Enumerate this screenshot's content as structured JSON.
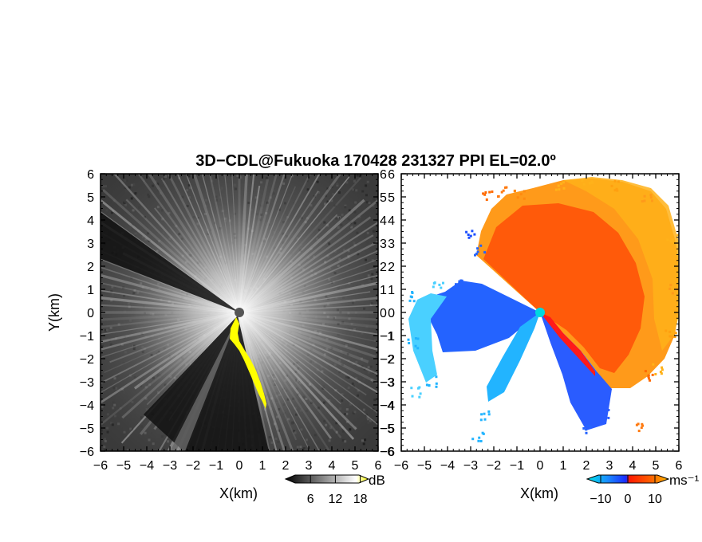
{
  "title": "3D−CDL@Fukuoka 170428 231327 PPI EL=02.0º",
  "chart_data": [
    {
      "type": "heatmap",
      "panel": "left",
      "quantity": "SNR",
      "xlabel": "X(km)",
      "ylabel": "Y(km)",
      "xlim": [
        -6,
        6
      ],
      "ylim": [
        -6,
        6
      ],
      "x_ticks": [
        "−6",
        "−5",
        "−4",
        "−3",
        "−2",
        "−1",
        "0",
        "1",
        "2",
        "3",
        "4",
        "5",
        "6"
      ],
      "y_ticks": [
        "6",
        "5",
        "4",
        "3",
        "2",
        "1",
        "0",
        "−1",
        "−2",
        "−3",
        "−4",
        "−5",
        "−6"
      ],
      "colorbar": {
        "unit": "dB",
        "ticks": [
          "6",
          "12",
          "18"
        ],
        "tick_values": [
          6,
          12,
          18
        ],
        "range": [
          0,
          20
        ],
        "colors": [
          "#000000",
          "#ffffff",
          "#ffff00"
        ]
      },
      "beam_blocked_sectors_deg": [
        [
          120,
          150
        ],
        [
          182,
          222
        ]
      ]
    },
    {
      "type": "heatmap",
      "panel": "right",
      "quantity": "Radial velocity",
      "xlabel": "X(km)",
      "xlim": [
        -6,
        6
      ],
      "ylim": [
        -6,
        6
      ],
      "x_ticks": [
        "−6",
        "−5",
        "−4",
        "−3",
        "−2",
        "−1",
        "0",
        "1",
        "2",
        "3",
        "4",
        "5",
        "6"
      ],
      "y_ticks": [
        "6",
        "5",
        "4",
        "3",
        "2",
        "1",
        "0",
        "−1",
        "−2",
        "−3",
        "−4",
        "−5",
        "−6"
      ],
      "colorbar": {
        "unit": "ms⁻¹",
        "ticks": [
          "−10",
          "0",
          "10"
        ],
        "tick_values": [
          -10,
          0,
          10
        ],
        "range": [
          -15,
          15
        ],
        "colors": [
          "#00e8e8",
          "#1a4dff",
          "#ff2200",
          "#ffaa00"
        ]
      }
    }
  ]
}
